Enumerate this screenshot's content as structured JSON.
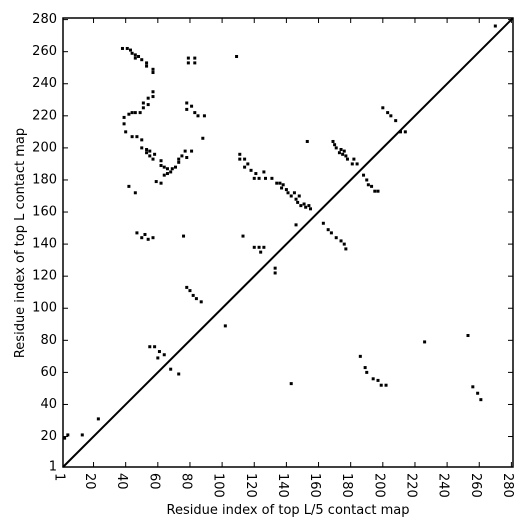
{
  "chart_data": {
    "type": "scatter",
    "x_label": "Residue index of top L/5 contact map",
    "y_label": "Residue index of top L contact map",
    "xlim": [
      1,
      281
    ],
    "ylim": [
      1,
      281
    ],
    "xticks": [
      1,
      20,
      40,
      60,
      80,
      100,
      120,
      140,
      160,
      180,
      200,
      220,
      240,
      260,
      280
    ],
    "yticks": [
      1,
      20,
      40,
      60,
      80,
      100,
      120,
      140,
      160,
      180,
      200,
      220,
      240,
      260,
      280
    ],
    "diagonal": true,
    "color": "#000000",
    "x": [
      38,
      41,
      43,
      44,
      46,
      46,
      48,
      50,
      53,
      53,
      57,
      57,
      79,
      79,
      83,
      83,
      109,
      39,
      39,
      42,
      44,
      46,
      49,
      51,
      51,
      54,
      54,
      57,
      57,
      40,
      78,
      78,
      81,
      83,
      85,
      89,
      44,
      47,
      50,
      50,
      53,
      53,
      55,
      55,
      57,
      58,
      62,
      62,
      64,
      66,
      66,
      68,
      69,
      71,
      73,
      73,
      75,
      78,
      77,
      81,
      88,
      59,
      62,
      64,
      42,
      46,
      111,
      111,
      114,
      116,
      114,
      118,
      120,
      121,
      123,
      126,
      127,
      131,
      134,
      136,
      137,
      138,
      140,
      141,
      143,
      145,
      146,
      148,
      147,
      149,
      151,
      152,
      154,
      155,
      153,
      169,
      170,
      171,
      173,
      174,
      175,
      176,
      177,
      178,
      181,
      182,
      184,
      188,
      190,
      191,
      193,
      195,
      197,
      200,
      203,
      205,
      208,
      211,
      214,
      270,
      47,
      50,
      52,
      54,
      57,
      76,
      113,
      120,
      123,
      124,
      126,
      133,
      133,
      146,
      163,
      166,
      168,
      171,
      174,
      176,
      177,
      78,
      80,
      82,
      84,
      87,
      102,
      55,
      58,
      61,
      60,
      64,
      68,
      73,
      2,
      4,
      13,
      23,
      143,
      186,
      189,
      190,
      194,
      197,
      199,
      202,
      226,
      253,
      256,
      259,
      261
    ],
    "values": [
      262,
      262,
      261,
      259,
      258,
      256,
      257,
      255,
      253,
      251,
      249,
      247,
      256,
      253,
      256,
      253,
      257,
      219,
      215,
      221,
      222,
      222,
      222,
      225,
      228,
      227,
      231,
      232,
      235,
      210,
      228,
      224,
      226,
      222,
      220,
      220,
      207,
      207,
      205,
      200,
      197,
      199,
      198,
      195,
      193,
      196,
      192,
      189,
      188,
      187,
      184,
      185,
      187,
      188,
      191,
      193,
      195,
      194,
      198,
      198,
      206,
      179,
      178,
      183,
      176,
      172,
      196,
      193,
      193,
      190,
      188,
      186,
      181,
      184,
      181,
      185,
      181,
      181,
      178,
      178,
      175,
      177,
      174,
      172,
      170,
      172,
      168,
      170,
      166,
      164,
      165,
      163,
      164,
      162,
      204,
      204,
      202,
      200,
      197,
      199,
      196,
      198,
      195,
      193,
      190,
      193,
      190,
      183,
      180,
      177,
      176,
      173,
      173,
      225,
      222,
      220,
      217,
      210,
      210,
      276,
      147,
      144,
      146,
      143,
      144,
      145,
      145,
      138,
      138,
      135,
      138,
      125,
      122,
      152,
      153,
      149,
      147,
      144,
      142,
      140,
      137,
      113,
      111,
      108,
      106,
      104,
      89,
      76,
      76,
      73,
      69,
      71,
      62,
      59,
      19,
      21,
      21,
      31,
      53,
      70,
      63,
      60,
      56,
      55,
      52,
      52,
      79,
      83,
      51,
      47,
      43
    ]
  }
}
